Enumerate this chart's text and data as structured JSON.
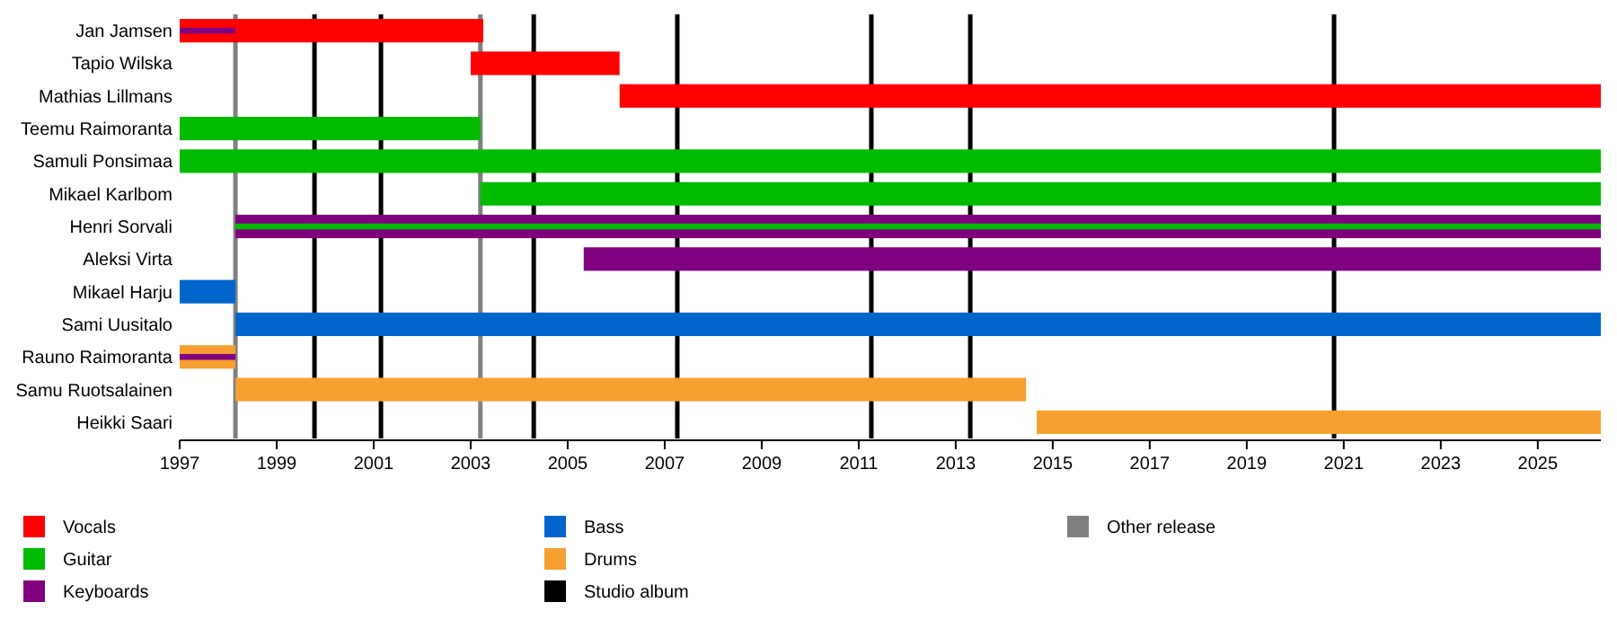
{
  "chart_data": {
    "type": "bar",
    "orientation": "horizontal",
    "legend": "bottom",
    "categories": [
      "Jan Jamsen",
      "Tapio Wilska",
      "Mathias Lillmans",
      "Teemu Raimoranta",
      "Samuli Ponsimaa",
      "Mikael Karlbom",
      "Henri Sorvali",
      "Aleksi Virta",
      "Mikael Harju",
      "Sami Uusitalo",
      "Rauno Raimoranta",
      "Samu Ruotsalainen",
      "Heikki Saari"
    ],
    "series": [
      {
        "name": "Vocals",
        "color": "#ff0000",
        "values": [
          6.26,
          3.07,
          20.23,
          null,
          null,
          null,
          null,
          null,
          null,
          null,
          null,
          null,
          null
        ],
        "base": [
          1997,
          2003.0,
          2006.07,
          null,
          null,
          null,
          null,
          null,
          null,
          null,
          null,
          null,
          null
        ]
      },
      {
        "name": "Guitar",
        "color": "#00bb00",
        "values": [
          null,
          null,
          null,
          6.2,
          29.3,
          23.1,
          null,
          null,
          null,
          null,
          null,
          null,
          null
        ],
        "base": [
          null,
          null,
          null,
          1997,
          1997,
          2003.2,
          null,
          null,
          null,
          null,
          null,
          null,
          null
        ]
      },
      {
        "name": "Keyboards",
        "color": "#800080",
        "values": [
          null,
          null,
          null,
          null,
          null,
          null,
          28.15,
          20.97,
          null,
          null,
          null,
          null,
          null
        ],
        "base": [
          null,
          null,
          null,
          null,
          null,
          null,
          1998.15,
          2005.33,
          null,
          null,
          null,
          null,
          null
        ]
      },
      {
        "name": "Bass",
        "color": "#0066cc",
        "values": [
          null,
          null,
          null,
          null,
          null,
          null,
          null,
          null,
          1.15,
          28.15,
          null,
          null,
          null
        ],
        "base": [
          null,
          null,
          null,
          null,
          null,
          null,
          null,
          null,
          1997,
          1998.15,
          null,
          null,
          null
        ]
      },
      {
        "name": "Drums",
        "color": "#f5a030",
        "values": [
          null,
          null,
          null,
          null,
          null,
          null,
          null,
          null,
          null,
          null,
          1.15,
          16.3,
          11.63
        ],
        "base": [
          null,
          null,
          null,
          null,
          null,
          null,
          null,
          null,
          null,
          null,
          1997,
          1998.15,
          2014.67
        ]
      },
      {
        "color": "#800080",
        "values": [
          1.15,
          null,
          null,
          null,
          null,
          null,
          null,
          null,
          null,
          null,
          1.15,
          null,
          null
        ],
        "base": [
          1997,
          null,
          null,
          null,
          null,
          null,
          null,
          null,
          null,
          null,
          1997,
          null,
          null
        ]
      },
      {
        "color": "#00bb00",
        "values": [
          null,
          null,
          null,
          null,
          null,
          null,
          28.15,
          null,
          null,
          null,
          null,
          null,
          null
        ],
        "base": [
          null,
          null,
          null,
          null,
          null,
          null,
          1998.15,
          null,
          null,
          null,
          null,
          null,
          null
        ]
      }
    ],
    "xlim": [
      1997,
      2026.3
    ],
    "xticks": [
      1997,
      1999,
      2001,
      2003,
      2005,
      2007,
      2009,
      2011,
      2013,
      2015,
      2017,
      2019,
      2021,
      2023,
      2025
    ],
    "ref_lines": [
      {
        "axis": "x",
        "value": 1999.78,
        "label": "Studio album",
        "color": "#000000"
      },
      {
        "axis": "x",
        "value": 2001.15,
        "color": "#000000"
      },
      {
        "axis": "x",
        "value": 2004.3,
        "color": "#000000"
      },
      {
        "axis": "x",
        "value": 2007.26,
        "color": "#000000"
      },
      {
        "axis": "x",
        "value": 2011.26,
        "color": "#000000"
      },
      {
        "axis": "x",
        "value": 2013.3,
        "color": "#000000"
      },
      {
        "axis": "x",
        "value": 2020.8,
        "color": "#000000"
      },
      {
        "axis": "x",
        "value": 1998.15,
        "label": "Other release",
        "color": "#808080"
      },
      {
        "axis": "x",
        "value": 2003.2,
        "color": "#808080"
      }
    ]
  }
}
